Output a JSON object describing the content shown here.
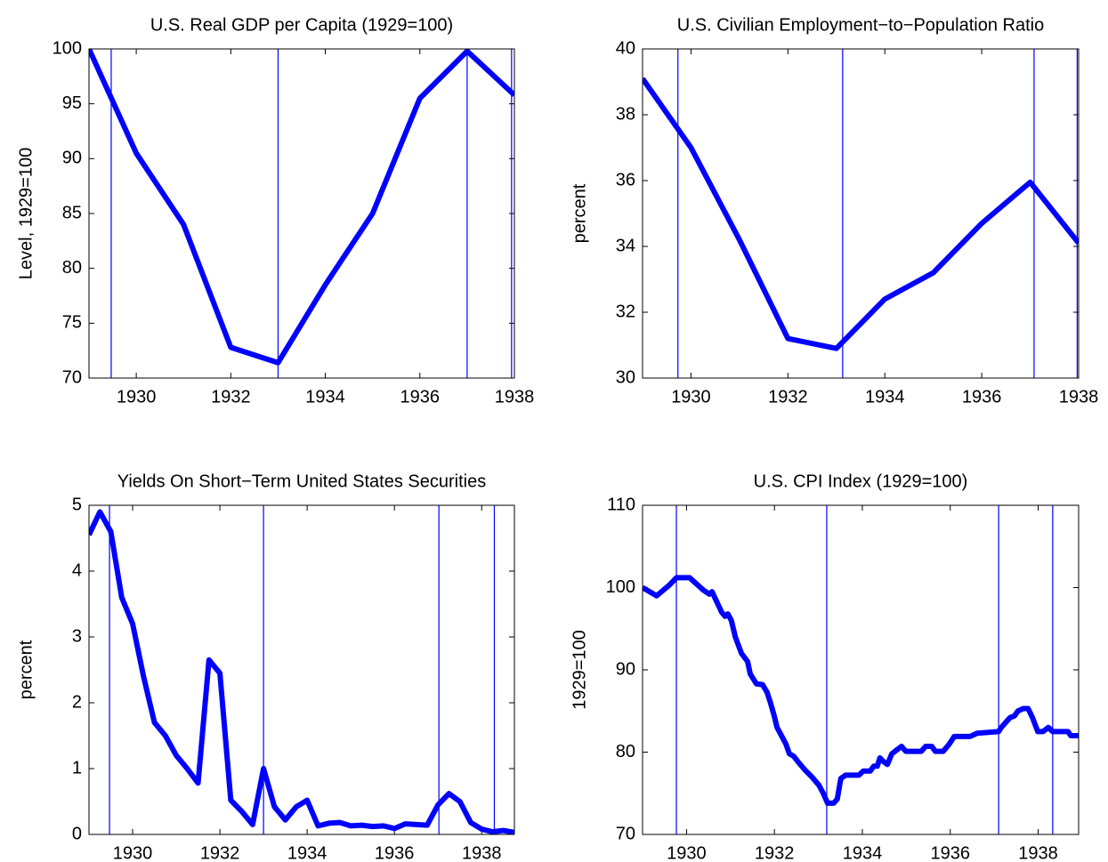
{
  "chart_data": [
    {
      "type": "line",
      "title": "U.S. Real  GDP per Capita (1929=100)",
      "ylabel": "Level, 1929=100",
      "color": "#0000ff",
      "x": [
        1929,
        1930,
        1931,
        1932,
        1933,
        1934,
        1935,
        1936,
        1937,
        1938
      ],
      "values": [
        100,
        90.5,
        84,
        72.8,
        71.4,
        78.5,
        85,
        95.5,
        99.8,
        95.8
      ],
      "xlim": [
        1929,
        1938
      ],
      "ylim": [
        70,
        100
      ],
      "xticks": [
        1930,
        1932,
        1934,
        1936,
        1938
      ],
      "yticks": [
        70,
        75,
        80,
        85,
        90,
        95,
        100
      ],
      "vlines": [
        1929.47,
        1933.0,
        1937.0,
        1937.94
      ]
    },
    {
      "type": "line",
      "title": "U.S. Civilian Employment−to−Population Ratio",
      "ylabel": "percent",
      "color": "#0000ff",
      "x": [
        1929,
        1930,
        1931,
        1932,
        1933,
        1934,
        1935,
        1936,
        1937,
        1938
      ],
      "values": [
        39.1,
        37,
        34.2,
        31.2,
        30.9,
        32.4,
        33.2,
        34.7,
        35.95,
        34.1
      ],
      "xlim": [
        1929,
        1938
      ],
      "ylim": [
        30,
        40
      ],
      "xticks": [
        1930,
        1932,
        1934,
        1936,
        1938
      ],
      "yticks": [
        30,
        32,
        34,
        36,
        38,
        40
      ],
      "vlines": [
        1929.73,
        1933.13,
        1937.08,
        1937.97
      ]
    },
    {
      "type": "line",
      "title": "Yields On Short−Term United States Securities",
      "ylabel": "percent",
      "color": "#0000ff",
      "x": [
        1929,
        1929.25,
        1929.5,
        1929.75,
        1930,
        1930.25,
        1930.5,
        1930.75,
        1931,
        1931.25,
        1931.5,
        1931.75,
        1932,
        1932.25,
        1932.5,
        1932.75,
        1933,
        1933.25,
        1933.5,
        1933.75,
        1934,
        1934.25,
        1934.5,
        1934.75,
        1935,
        1935.25,
        1935.5,
        1935.75,
        1936,
        1936.25,
        1936.5,
        1936.75,
        1937,
        1937.25,
        1937.5,
        1937.75,
        1938,
        1938.25,
        1938.5,
        1938.75
      ],
      "values": [
        4.55,
        4.9,
        4.6,
        3.6,
        3.2,
        2.4,
        1.7,
        1.5,
        1.2,
        1.0,
        0.78,
        2.65,
        2.45,
        0.52,
        0.35,
        0.15,
        1.0,
        0.42,
        0.22,
        0.42,
        0.52,
        0.13,
        0.17,
        0.18,
        0.13,
        0.14,
        0.12,
        0.13,
        0.09,
        0.16,
        0.15,
        0.14,
        0.45,
        0.62,
        0.5,
        0.18,
        0.08,
        0.04,
        0.06,
        0.03
      ],
      "xlim": [
        1929,
        1938.75
      ],
      "ylim": [
        0,
        5
      ],
      "xticks": [
        1930,
        1932,
        1934,
        1936,
        1938
      ],
      "yticks": [
        0,
        1,
        2,
        3,
        4,
        5
      ],
      "vlines": [
        1929.47,
        1933.0,
        1937.02,
        1938.29
      ]
    },
    {
      "type": "line",
      "title": "U.S. CPI Index (1929=100)",
      "ylabel": "1929=100",
      "color": "#0000ff",
      "x": [
        1929.0,
        1929.32,
        1929.61,
        1929.77,
        1930.07,
        1930.38,
        1930.52,
        1930.58,
        1930.8,
        1930.88,
        1930.94,
        1931.02,
        1931.11,
        1931.25,
        1931.39,
        1931.45,
        1931.59,
        1931.73,
        1931.83,
        1931.91,
        1931.99,
        1932.06,
        1932.18,
        1932.26,
        1932.34,
        1932.44,
        1932.54,
        1932.7,
        1932.85,
        1933.01,
        1933.11,
        1933.21,
        1933.35,
        1933.43,
        1933.51,
        1933.62,
        1933.92,
        1934.02,
        1934.18,
        1934.26,
        1934.34,
        1934.4,
        1934.47,
        1934.57,
        1934.67,
        1934.79,
        1934.89,
        1934.99,
        1935.34,
        1935.44,
        1935.58,
        1935.66,
        1935.84,
        1935.98,
        1936.09,
        1936.45,
        1936.61,
        1937.1,
        1937.16,
        1937.36,
        1937.46,
        1937.54,
        1937.66,
        1937.77,
        1937.87,
        1937.99,
        1938.11,
        1938.23,
        1938.33,
        1938.68,
        1938.74,
        1938.92
      ],
      "values": [
        100,
        99,
        100.3,
        101.2,
        101.2,
        99.7,
        99.2,
        99.5,
        97,
        96.5,
        96.8,
        96,
        94,
        92,
        91,
        89.5,
        88.3,
        88.2,
        87.3,
        86,
        84.5,
        83,
        81.8,
        81,
        79.8,
        79.5,
        78.8,
        77.8,
        77,
        76,
        75,
        73.8,
        73.8,
        74.3,
        76.8,
        77.2,
        77.2,
        77.7,
        77.7,
        78.3,
        78.3,
        79.3,
        78.9,
        78.5,
        79.8,
        80.3,
        80.7,
        80.1,
        80.1,
        80.7,
        80.7,
        80.1,
        80.1,
        81,
        81.9,
        81.9,
        82.3,
        82.5,
        83,
        84.2,
        84.4,
        85,
        85.3,
        85.3,
        84.2,
        82.5,
        82.5,
        83,
        82.5,
        82.5,
        82,
        82
      ],
      "xlim": [
        1929,
        1938.92
      ],
      "ylim": [
        70,
        110
      ],
      "xticks": [
        1930,
        1932,
        1934,
        1936,
        1938
      ],
      "yticks": [
        70,
        80,
        90,
        100,
        110
      ],
      "vlines": [
        1929.77,
        1933.19,
        1937.1,
        1938.33
      ]
    }
  ]
}
